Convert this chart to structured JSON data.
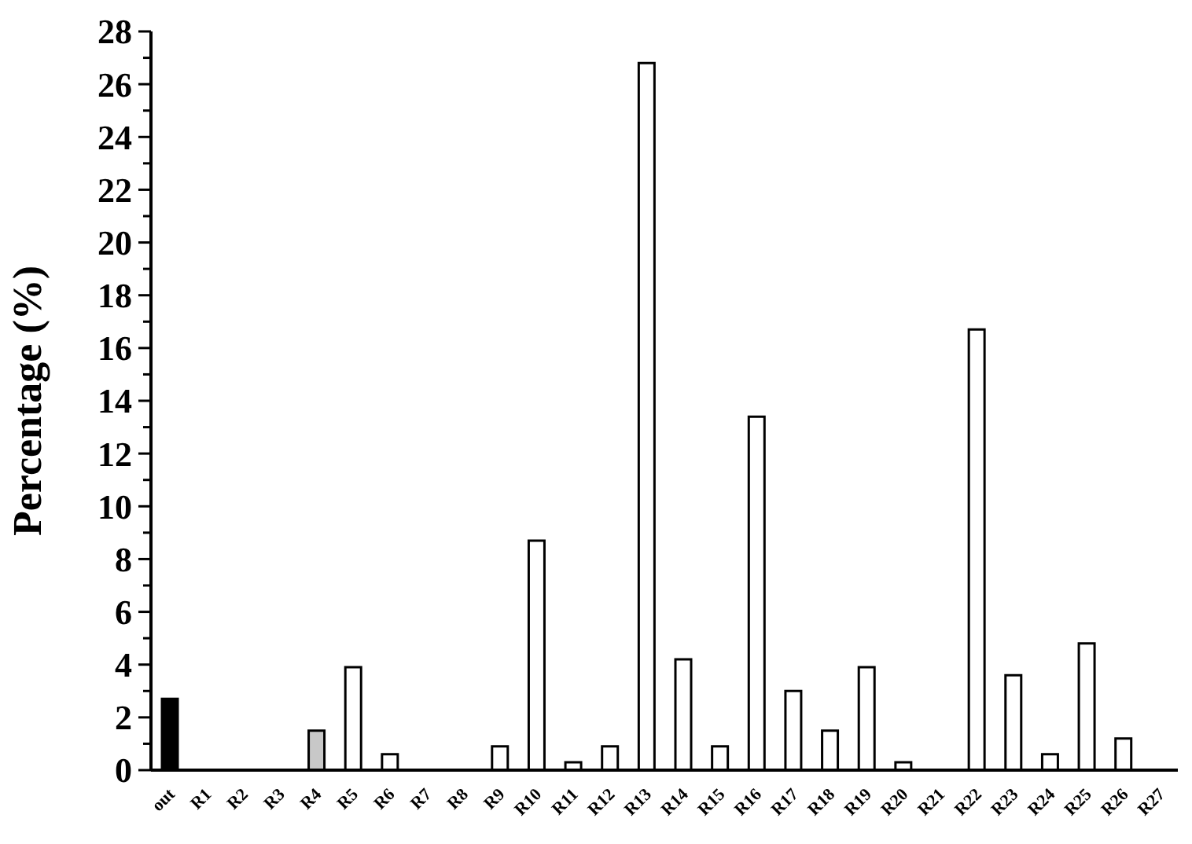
{
  "chart_data": {
    "type": "bar",
    "ylabel": "Percentage (%)",
    "categories": [
      "out",
      "R1",
      "R2",
      "R3",
      "R4",
      "R5",
      "R6",
      "R7",
      "R8",
      "R9",
      "R10",
      "R11",
      "R12",
      "R13",
      "R14",
      "R15",
      "R16",
      "R17",
      "R18",
      "R19",
      "R20",
      "R21",
      "R22",
      "R23",
      "R24",
      "R25",
      "R26",
      "R27"
    ],
    "values": [
      2.7,
      0,
      0,
      0,
      1.5,
      3.9,
      0.6,
      0,
      0,
      0.9,
      8.7,
      0.3,
      0.9,
      26.8,
      4.2,
      0.9,
      13.4,
      3.0,
      1.5,
      3.9,
      0.3,
      0,
      16.7,
      3.6,
      0.6,
      4.8,
      1.2,
      0
    ],
    "colors": [
      "#000000",
      "#ffffff",
      "#ffffff",
      "#ffffff",
      "#c8c8c8",
      "#ffffff",
      "#ffffff",
      "#ffffff",
      "#ffffff",
      "#ffffff",
      "#ffffff",
      "#ffffff",
      "#ffffff",
      "#ffffff",
      "#ffffff",
      "#ffffff",
      "#ffffff",
      "#ffffff",
      "#ffffff",
      "#ffffff",
      "#ffffff",
      "#ffffff",
      "#ffffff",
      "#ffffff",
      "#ffffff",
      "#ffffff",
      "#ffffff",
      "#ffffff"
    ],
    "ylim": [
      0,
      28
    ],
    "yticks": [
      0,
      {
        "value": 1,
        "label": null
      },
      2,
      {
        "value": 3,
        "label": null
      },
      4,
      {
        "value": 5,
        "label": null
      },
      6,
      {
        "value": 7,
        "label": null
      },
      8,
      {
        "value": 9,
        "label": null
      },
      10,
      {
        "value": 11,
        "label": null
      },
      12,
      {
        "value": 13,
        "label": null
      },
      14,
      {
        "value": 15,
        "label": null
      },
      16,
      {
        "value": 17,
        "label": null
      },
      18,
      {
        "value": 19,
        "label": null
      },
      20,
      {
        "value": 21,
        "label": null
      },
      22,
      {
        "value": 23,
        "label": null
      },
      24,
      {
        "value": 25,
        "label": null
      },
      26,
      {
        "value": 27,
        "label": null
      },
      28
    ],
    "grid": false,
    "legend": false
  }
}
